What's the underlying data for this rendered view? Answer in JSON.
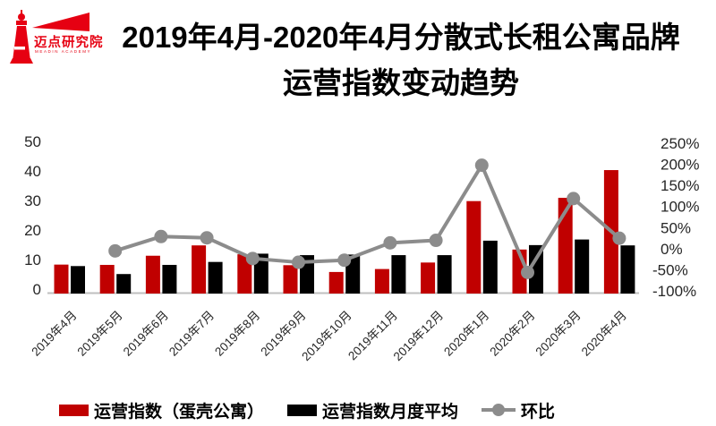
{
  "brand": {
    "name": "迈点研究院",
    "subtext": "MEADIN ACADEMY",
    "color": "#e60012"
  },
  "title": {
    "line1": "2019年4月-2020年4月分散式长租公寓品牌",
    "line2": "运营指数变动趋势"
  },
  "legend": [
    {
      "label": "运营指数（蛋壳公寓）",
      "type": "bar",
      "color": "#c00000"
    },
    {
      "label": "运营指数月度平均",
      "type": "bar",
      "color": "#000000"
    },
    {
      "label": "环比",
      "type": "line-marker",
      "color": "#8c8c8c"
    }
  ],
  "chart_data": {
    "type": "bar",
    "subtype": "grouped bars with secondary-axis line",
    "title": "2019年4月-2020年4月分散式长租公寓品牌运营指数变动趋势",
    "categories": [
      "2019年4月",
      "2019年5月",
      "2019年6月",
      "2019年7月",
      "2019年8月",
      "2019年9月",
      "2019年10月",
      "2019年11月",
      "2019年12月",
      "2020年1月",
      "2020年2月",
      "2020年3月",
      "2020年4月"
    ],
    "series": [
      {
        "name": "运营指数（蛋壳公寓）",
        "type": "bar",
        "axis": "left",
        "color": "#c00000",
        "values": [
          9.5,
          9.4,
          12.5,
          16.0,
          13.0,
          9.3,
          7.0,
          8.0,
          10.2,
          31.0,
          14.6,
          32.1,
          41.5
        ]
      },
      {
        "name": "运营指数月度平均",
        "type": "bar",
        "axis": "left",
        "color": "#000000",
        "values": [
          9.0,
          6.3,
          9.4,
          10.4,
          13.2,
          12.7,
          12.9,
          12.7,
          12.7,
          17.6,
          16.1,
          18.0,
          16.0
        ]
      },
      {
        "name": "环比",
        "type": "line",
        "axis": "right",
        "color": "#8c8c8c",
        "values_pct": [
          null,
          -1,
          33,
          30,
          -19,
          -28,
          -23,
          18,
          24,
          202,
          -52,
          123,
          29
        ]
      }
    ],
    "left_axis": {
      "min": 0,
      "max": 50,
      "step": 10,
      "ticks": [
        0,
        10,
        20,
        30,
        40,
        50
      ]
    },
    "right_axis": {
      "min": -100,
      "max": 250,
      "step": 50,
      "ticks_pct": [
        "-100%",
        "-50%",
        "0%",
        "50%",
        "100%",
        "150%",
        "200%",
        "250%"
      ]
    },
    "grid": false,
    "legend_position": "bottom",
    "axis_line_color": "#bfbfbf",
    "tick_label_color": "#262626"
  }
}
